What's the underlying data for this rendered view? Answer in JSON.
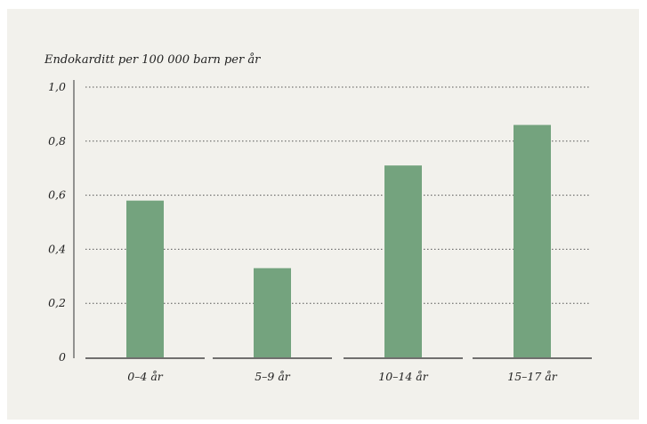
{
  "chart_data": {
    "type": "bar",
    "ylabel": "Endokarditt per 100 000 barn per år",
    "xlabel": "",
    "categories": [
      "0–4 år",
      "5–9 år",
      "10–14 år",
      "15–17 år"
    ],
    "values": [
      0.58,
      0.33,
      0.71,
      0.86
    ],
    "yticks": [
      "0",
      "0,2",
      "0,4",
      "0,6",
      "0,8",
      "1,0"
    ],
    "ylim": [
      0,
      1.0
    ],
    "grid": "horizontal-dotted",
    "bar_color": "#74a37e",
    "background_color": "#f2f1ec"
  }
}
